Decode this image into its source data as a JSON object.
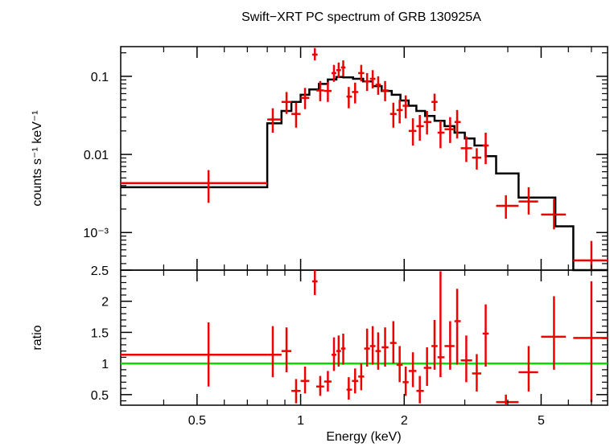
{
  "chart_data": {
    "title": "Swift−XRT PC spectrum of GRB 130925A",
    "type": "scatter",
    "xlabel": "Energy (keV)",
    "xscale": "log",
    "xlim": [
      0.3,
      7.8
    ],
    "x_ticks": [
      {
        "value": 0.5,
        "label": "0.5"
      },
      {
        "value": 1,
        "label": "1"
      },
      {
        "value": 2,
        "label": "2"
      },
      {
        "value": 5,
        "label": "5"
      }
    ],
    "colors": {
      "data": "#ee0000",
      "model": "#000000",
      "unity": "#00dd00"
    },
    "panels": [
      {
        "id": "spectrum",
        "ylabel": "counts s⁻¹ keV⁻¹",
        "yscale": "log",
        "ylim": [
          0.00033,
          0.24
        ],
        "y_ticks": [
          {
            "value": 0.1,
            "label": "0.1"
          },
          {
            "value": 0.01,
            "label": "0.01"
          },
          {
            "value": 0.001,
            "label": "10⁻³"
          }
        ],
        "model": {
          "edges": [
            0.3,
            0.8,
            0.88,
            0.94,
            1.0,
            1.06,
            1.13,
            1.2,
            1.27,
            1.33,
            1.42,
            1.52,
            1.62,
            1.72,
            1.84,
            1.95,
            2.06,
            2.17,
            2.3,
            2.45,
            2.62,
            2.8,
            3.0,
            3.2,
            3.45,
            3.7,
            4.3,
            5.5,
            6.2,
            7.8
          ],
          "values": [
            0.0038,
            0.025,
            0.036,
            0.047,
            0.058,
            0.068,
            0.08,
            0.091,
            0.098,
            0.097,
            0.093,
            0.086,
            0.075,
            0.065,
            0.058,
            0.049,
            0.042,
            0.036,
            0.031,
            0.027,
            0.023,
            0.019,
            0.016,
            0.013,
            0.0095,
            0.0057,
            0.0028,
            0.0012,
            0.00031
          ]
        },
        "points": [
          {
            "x": 0.54,
            "xlo": 0.3,
            "xhi": 0.8,
            "y": 0.0043,
            "ylo": 0.0024,
            "yhi": 0.0063
          },
          {
            "x": 0.83,
            "xlo": 0.8,
            "xhi": 0.88,
            "y": 0.028,
            "ylo": 0.019,
            "yhi": 0.039
          },
          {
            "x": 0.91,
            "xlo": 0.88,
            "xhi": 0.94,
            "y": 0.047,
            "ylo": 0.033,
            "yhi": 0.063
          },
          {
            "x": 0.97,
            "xlo": 0.94,
            "xhi": 1.0,
            "y": 0.033,
            "ylo": 0.022,
            "yhi": 0.046
          },
          {
            "x": 1.03,
            "xlo": 1.0,
            "xhi": 1.06,
            "y": 0.053,
            "ylo": 0.038,
            "yhi": 0.071
          },
          {
            "x": 1.1,
            "xlo": 1.08,
            "xhi": 1.12,
            "y": 0.19,
            "ylo": 0.16,
            "yhi": 0.23
          },
          {
            "x": 1.14,
            "xlo": 1.11,
            "xhi": 1.17,
            "y": 0.066,
            "ylo": 0.048,
            "yhi": 0.087
          },
          {
            "x": 1.2,
            "xlo": 1.17,
            "xhi": 1.23,
            "y": 0.065,
            "ylo": 0.047,
            "yhi": 0.085
          },
          {
            "x": 1.25,
            "xlo": 1.23,
            "xhi": 1.27,
            "y": 0.11,
            "ylo": 0.085,
            "yhi": 0.14
          },
          {
            "x": 1.29,
            "xlo": 1.27,
            "xhi": 1.31,
            "y": 0.12,
            "ylo": 0.095,
            "yhi": 0.15
          },
          {
            "x": 1.33,
            "xlo": 1.31,
            "xhi": 1.35,
            "y": 0.13,
            "ylo": 0.1,
            "yhi": 0.16
          },
          {
            "x": 1.38,
            "xlo": 1.36,
            "xhi": 1.41,
            "y": 0.055,
            "ylo": 0.039,
            "yhi": 0.073
          },
          {
            "x": 1.44,
            "xlo": 1.41,
            "xhi": 1.47,
            "y": 0.063,
            "ylo": 0.045,
            "yhi": 0.083
          },
          {
            "x": 1.5,
            "xlo": 1.47,
            "xhi": 1.53,
            "y": 0.11,
            "ylo": 0.086,
            "yhi": 0.14
          },
          {
            "x": 1.56,
            "xlo": 1.53,
            "xhi": 1.59,
            "y": 0.086,
            "ylo": 0.065,
            "yhi": 0.11
          },
          {
            "x": 1.62,
            "xlo": 1.59,
            "xhi": 1.65,
            "y": 0.093,
            "ylo": 0.07,
            "yhi": 0.12
          },
          {
            "x": 1.68,
            "xlo": 1.65,
            "xhi": 1.71,
            "y": 0.078,
            "ylo": 0.058,
            "yhi": 0.1
          },
          {
            "x": 1.76,
            "xlo": 1.72,
            "xhi": 1.8,
            "y": 0.066,
            "ylo": 0.048,
            "yhi": 0.087
          },
          {
            "x": 1.86,
            "xlo": 1.82,
            "xhi": 1.9,
            "y": 0.033,
            "ylo": 0.022,
            "yhi": 0.046
          },
          {
            "x": 1.94,
            "xlo": 1.9,
            "xhi": 1.98,
            "y": 0.037,
            "ylo": 0.025,
            "yhi": 0.05
          },
          {
            "x": 2.02,
            "xlo": 1.98,
            "xhi": 2.06,
            "y": 0.042,
            "ylo": 0.029,
            "yhi": 0.057
          },
          {
            "x": 2.12,
            "xlo": 2.06,
            "xhi": 2.17,
            "y": 0.02,
            "ylo": 0.013,
            "yhi": 0.029
          },
          {
            "x": 2.22,
            "xlo": 2.17,
            "xhi": 2.28,
            "y": 0.023,
            "ylo": 0.015,
            "yhi": 0.032
          },
          {
            "x": 2.33,
            "xlo": 2.28,
            "xhi": 2.4,
            "y": 0.026,
            "ylo": 0.018,
            "yhi": 0.036
          },
          {
            "x": 2.45,
            "xlo": 2.4,
            "xhi": 2.5,
            "y": 0.047,
            "ylo": 0.036,
            "yhi": 0.06
          },
          {
            "x": 2.55,
            "xlo": 2.5,
            "xhi": 2.62,
            "y": 0.019,
            "ylo": 0.012,
            "yhi": 0.027
          },
          {
            "x": 2.72,
            "xlo": 2.62,
            "xhi": 2.8,
            "y": 0.021,
            "ylo": 0.014,
            "yhi": 0.03
          },
          {
            "x": 2.85,
            "xlo": 2.8,
            "xhi": 2.92,
            "y": 0.026,
            "ylo": 0.016,
            "yhi": 0.037
          },
          {
            "x": 3.03,
            "xlo": 2.92,
            "xhi": 3.15,
            "y": 0.012,
            "ylo": 0.008,
            "yhi": 0.017
          },
          {
            "x": 3.25,
            "xlo": 3.15,
            "xhi": 3.35,
            "y": 0.0091,
            "ylo": 0.0064,
            "yhi": 0.012
          },
          {
            "x": 3.45,
            "xlo": 3.38,
            "xhi": 3.52,
            "y": 0.013,
            "ylo": 0.0075,
            "yhi": 0.019
          },
          {
            "x": 3.95,
            "xlo": 3.7,
            "xhi": 4.3,
            "y": 0.0022,
            "ylo": 0.0015,
            "yhi": 0.003
          },
          {
            "x": 4.6,
            "xlo": 4.3,
            "xhi": 4.9,
            "y": 0.0025,
            "ylo": 0.0017,
            "yhi": 0.0038
          },
          {
            "x": 5.45,
            "xlo": 5.0,
            "xhi": 5.9,
            "y": 0.0017,
            "ylo": 0.0011,
            "yhi": 0.0027
          },
          {
            "x": 7.0,
            "xlo": 6.2,
            "xhi": 7.8,
            "y": 0.00044,
            "ylo": 0.00025,
            "yhi": 0.00078
          }
        ]
      },
      {
        "id": "ratio",
        "ylabel": "ratio",
        "yscale": "linear",
        "ylim": [
          0.33,
          2.5
        ],
        "y_ticks": [
          {
            "value": 0.5,
            "label": "0.5"
          },
          {
            "value": 1,
            "label": "1"
          },
          {
            "value": 1.5,
            "label": "1.5"
          },
          {
            "value": 2,
            "label": "2"
          },
          {
            "value": 2.5,
            "label": "2.5"
          }
        ],
        "reference": 1,
        "points": [
          {
            "x": 0.54,
            "xlo": 0.3,
            "xhi": 0.8,
            "y": 1.14,
            "ylo": 0.63,
            "yhi": 1.66
          },
          {
            "x": 0.83,
            "xlo": 0.8,
            "xhi": 0.88,
            "y": 1.14,
            "ylo": 0.78,
            "yhi": 1.6
          },
          {
            "x": 0.91,
            "xlo": 0.88,
            "xhi": 0.94,
            "y": 1.2,
            "ylo": 0.86,
            "yhi": 1.58
          },
          {
            "x": 0.97,
            "xlo": 0.94,
            "xhi": 1.0,
            "y": 0.56,
            "ylo": 0.36,
            "yhi": 0.75
          },
          {
            "x": 1.03,
            "xlo": 1.0,
            "xhi": 1.06,
            "y": 0.72,
            "ylo": 0.52,
            "yhi": 0.95
          },
          {
            "x": 1.1,
            "xlo": 1.08,
            "xhi": 1.12,
            "y": 2.32,
            "ylo": 2.1,
            "yhi": 2.5
          },
          {
            "x": 1.14,
            "xlo": 1.11,
            "xhi": 1.17,
            "y": 0.63,
            "ylo": 0.48,
            "yhi": 0.8
          },
          {
            "x": 1.2,
            "xlo": 1.17,
            "xhi": 1.23,
            "y": 0.71,
            "ylo": 0.55,
            "yhi": 0.88
          },
          {
            "x": 1.25,
            "xlo": 1.23,
            "xhi": 1.27,
            "y": 1.14,
            "ylo": 0.88,
            "yhi": 1.42
          },
          {
            "x": 1.29,
            "xlo": 1.27,
            "xhi": 1.31,
            "y": 1.2,
            "ylo": 0.95,
            "yhi": 1.45
          },
          {
            "x": 1.33,
            "xlo": 1.31,
            "xhi": 1.35,
            "y": 1.24,
            "ylo": 0.98,
            "yhi": 1.48
          },
          {
            "x": 1.38,
            "xlo": 1.36,
            "xhi": 1.41,
            "y": 0.58,
            "ylo": 0.42,
            "yhi": 0.78
          },
          {
            "x": 1.44,
            "xlo": 1.41,
            "xhi": 1.47,
            "y": 0.72,
            "ylo": 0.52,
            "yhi": 0.92
          },
          {
            "x": 1.5,
            "xlo": 1.47,
            "xhi": 1.53,
            "y": 0.79,
            "ylo": 0.57,
            "yhi": 1.0
          },
          {
            "x": 1.56,
            "xlo": 1.53,
            "xhi": 1.59,
            "y": 1.24,
            "ylo": 0.95,
            "yhi": 1.56
          },
          {
            "x": 1.62,
            "xlo": 1.59,
            "xhi": 1.65,
            "y": 1.28,
            "ylo": 0.98,
            "yhi": 1.6
          },
          {
            "x": 1.68,
            "xlo": 1.65,
            "xhi": 1.71,
            "y": 1.2,
            "ylo": 0.9,
            "yhi": 1.5
          },
          {
            "x": 1.76,
            "xlo": 1.72,
            "xhi": 1.8,
            "y": 1.26,
            "ylo": 0.95,
            "yhi": 1.58
          },
          {
            "x": 1.86,
            "xlo": 1.82,
            "xhi": 1.9,
            "y": 1.33,
            "ylo": 1.0,
            "yhi": 1.68
          },
          {
            "x": 1.94,
            "xlo": 1.9,
            "xhi": 1.98,
            "y": 0.98,
            "ylo": 0.7,
            "yhi": 1.28
          },
          {
            "x": 2.02,
            "xlo": 1.98,
            "xhi": 2.06,
            "y": 0.7,
            "ylo": 0.48,
            "yhi": 0.95
          },
          {
            "x": 2.12,
            "xlo": 2.06,
            "xhi": 2.17,
            "y": 0.88,
            "ylo": 0.62,
            "yhi": 1.18
          },
          {
            "x": 2.22,
            "xlo": 2.17,
            "xhi": 2.28,
            "y": 0.56,
            "ylo": 0.36,
            "yhi": 0.8
          },
          {
            "x": 2.33,
            "xlo": 2.28,
            "xhi": 2.4,
            "y": 0.93,
            "ylo": 0.64,
            "yhi": 1.26
          },
          {
            "x": 2.45,
            "xlo": 2.4,
            "xhi": 2.5,
            "y": 1.28,
            "ylo": 0.9,
            "yhi": 1.7
          },
          {
            "x": 2.55,
            "xlo": 2.5,
            "xhi": 2.62,
            "y": 1.1,
            "ylo": 0.78,
            "yhi": 2.48
          },
          {
            "x": 2.72,
            "xlo": 2.62,
            "xhi": 2.8,
            "y": 1.28,
            "ylo": 0.9,
            "yhi": 1.68
          },
          {
            "x": 2.85,
            "xlo": 2.8,
            "xhi": 2.92,
            "y": 1.68,
            "ylo": 0.98,
            "yhi": 2.2
          },
          {
            "x": 3.03,
            "xlo": 2.92,
            "xhi": 3.15,
            "y": 1.05,
            "ylo": 0.7,
            "yhi": 1.45
          },
          {
            "x": 3.25,
            "xlo": 3.15,
            "xhi": 3.35,
            "y": 0.84,
            "ylo": 0.55,
            "yhi": 1.15
          },
          {
            "x": 3.45,
            "xlo": 3.38,
            "xhi": 3.52,
            "y": 1.48,
            "ylo": 0.95,
            "yhi": 1.95
          },
          {
            "x": 3.95,
            "xlo": 3.7,
            "xhi": 4.3,
            "y": 0.38,
            "ylo": 0.33,
            "yhi": 0.5
          },
          {
            "x": 4.6,
            "xlo": 4.3,
            "xhi": 4.9,
            "y": 0.86,
            "ylo": 0.55,
            "yhi": 1.28
          },
          {
            "x": 5.45,
            "xlo": 5.0,
            "xhi": 5.9,
            "y": 1.43,
            "ylo": 0.9,
            "yhi": 2.08
          },
          {
            "x": 7.0,
            "xlo": 6.2,
            "xhi": 7.8,
            "y": 1.41,
            "ylo": 0.38,
            "yhi": 2.32
          }
        ]
      }
    ]
  }
}
